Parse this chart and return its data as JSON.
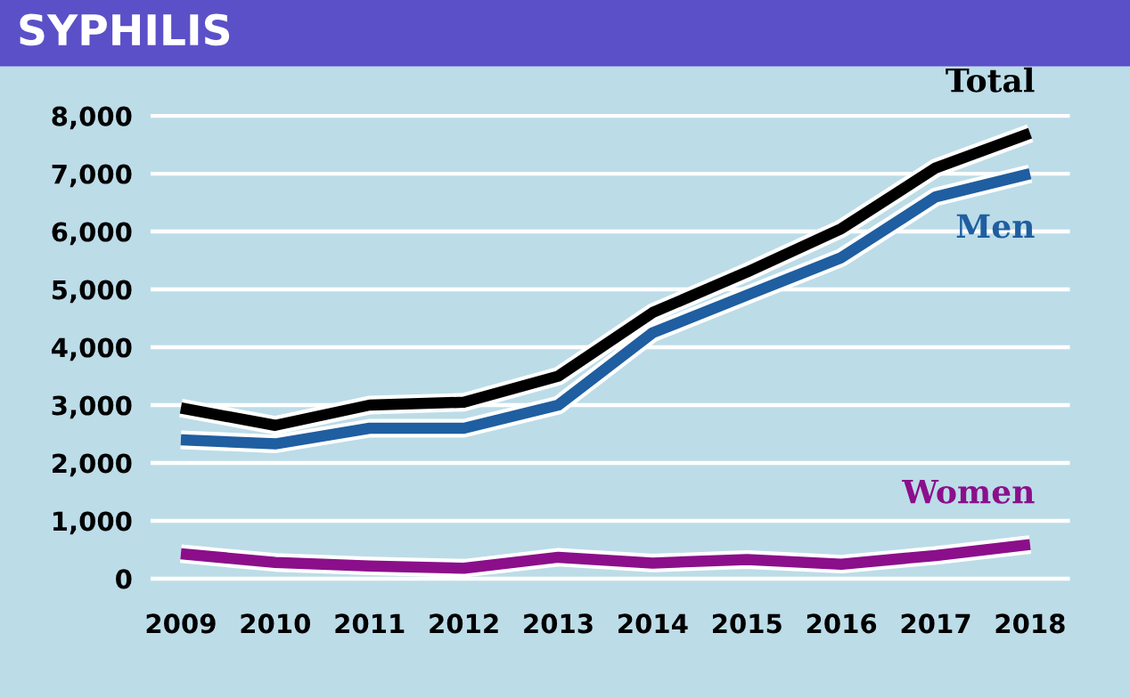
{
  "chart_data": {
    "type": "line",
    "title": "SYPHILIS",
    "categories": [
      "2009",
      "2010",
      "2011",
      "2012",
      "2013",
      "2014",
      "2015",
      "2016",
      "2017",
      "2018"
    ],
    "series": [
      {
        "name": "Total",
        "color": "#000000",
        "values": [
          2950,
          2650,
          3000,
          3050,
          3500,
          4600,
          5300,
          6050,
          7100,
          7700
        ]
      },
      {
        "name": "Men",
        "color": "#1f5ea0",
        "values": [
          2400,
          2330,
          2600,
          2600,
          3000,
          4250,
          4900,
          5550,
          6600,
          7000
        ]
      },
      {
        "name": "Women",
        "color": "#8b0f8a",
        "values": [
          430,
          280,
          220,
          180,
          370,
          270,
          330,
          250,
          400,
          590
        ]
      }
    ],
    "ylim": [
      0,
      8000
    ],
    "yticks": [
      0,
      {
        "value": 1000,
        "label": "1,000"
      },
      {
        "value": 2000,
        "label": "2,000"
      },
      {
        "value": 3000,
        "label": "3,000"
      },
      {
        "value": 4000,
        "label": "4,000"
      },
      {
        "value": 5000,
        "label": "5,000"
      },
      {
        "value": 6000,
        "label": "6,000"
      },
      {
        "value": 7000,
        "label": "7,000"
      },
      {
        "value": 8000,
        "label": "8,000"
      }
    ],
    "grid": "y",
    "legend": false,
    "marker": "none",
    "line_style": "solid"
  }
}
